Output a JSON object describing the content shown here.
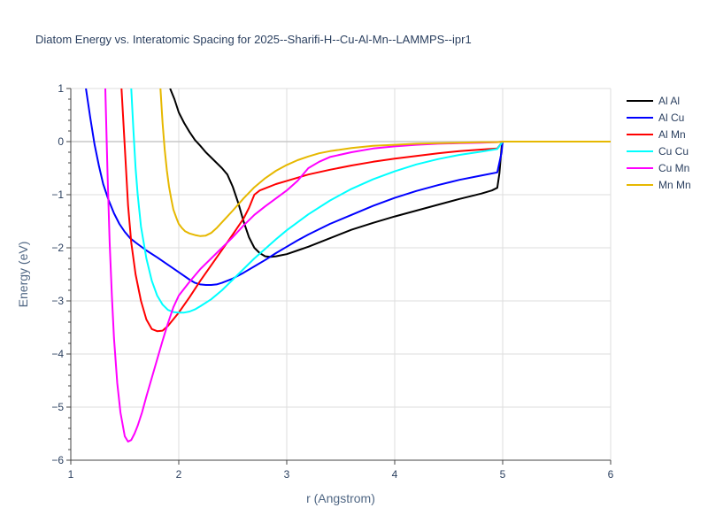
{
  "chart_data": {
    "type": "line",
    "title": "Diatom Energy vs. Interatomic Spacing for 2025--Sharifi-H--Cu-Al-Mn--LAMMPS--ipr1",
    "xlabel": "r (Angstrom)",
    "ylabel": "Energy (eV)",
    "xlim": [
      1,
      6
    ],
    "ylim": [
      -6,
      1
    ],
    "xticks": [
      1,
      2,
      3,
      4,
      5,
      6
    ],
    "yticks": [
      1,
      0,
      -1,
      -2,
      -3,
      -4,
      -5,
      -6
    ],
    "ytick_labels": [
      "1",
      "0",
      "−1",
      "−2",
      "−3",
      "−4",
      "−5",
      "−6"
    ],
    "grid": true,
    "legend_position": "top-right",
    "series": [
      {
        "name": "Al Al",
        "color": "#000000",
        "x": [
          1.92,
          1.96,
          2.0,
          2.05,
          2.1,
          2.15,
          2.2,
          2.25,
          2.3,
          2.35,
          2.4,
          2.45,
          2.5,
          2.55,
          2.6,
          2.65,
          2.7,
          2.75,
          2.8,
          2.85,
          2.9,
          2.95,
          3.0,
          3.1,
          3.2,
          3.4,
          3.6,
          3.8,
          4.0,
          4.2,
          4.4,
          4.6,
          4.8,
          4.9,
          4.95,
          4.97,
          4.99,
          5.0,
          5.5,
          6.0
        ],
        "y": [
          1.0,
          0.8,
          0.55,
          0.35,
          0.18,
          0.03,
          -0.08,
          -0.2,
          -0.3,
          -0.4,
          -0.5,
          -0.62,
          -0.85,
          -1.15,
          -1.5,
          -1.8,
          -2.0,
          -2.1,
          -2.16,
          -2.17,
          -2.16,
          -2.14,
          -2.12,
          -2.05,
          -1.98,
          -1.82,
          -1.66,
          -1.53,
          -1.41,
          -1.3,
          -1.19,
          -1.08,
          -0.98,
          -0.92,
          -0.87,
          -0.6,
          -0.1,
          0.0,
          0.0,
          0.0
        ]
      },
      {
        "name": "Al Cu",
        "color": "#0000ff",
        "x": [
          1.14,
          1.18,
          1.22,
          1.26,
          1.3,
          1.35,
          1.4,
          1.45,
          1.5,
          1.55,
          1.6,
          1.7,
          1.8,
          1.9,
          2.0,
          2.1,
          2.15,
          2.2,
          2.25,
          2.3,
          2.35,
          2.4,
          2.5,
          2.6,
          2.7,
          2.8,
          2.9,
          3.0,
          3.1,
          3.2,
          3.3,
          3.4,
          3.6,
          3.8,
          4.0,
          4.2,
          4.4,
          4.6,
          4.8,
          4.95,
          4.99,
          5.0,
          5.5,
          6.0
        ],
        "y": [
          1.0,
          0.45,
          -0.05,
          -0.45,
          -0.8,
          -1.1,
          -1.35,
          -1.55,
          -1.7,
          -1.82,
          -1.9,
          -2.05,
          -2.18,
          -2.32,
          -2.46,
          -2.6,
          -2.66,
          -2.69,
          -2.7,
          -2.7,
          -2.69,
          -2.66,
          -2.58,
          -2.47,
          -2.35,
          -2.23,
          -2.1,
          -1.98,
          -1.86,
          -1.75,
          -1.65,
          -1.55,
          -1.38,
          -1.21,
          -1.06,
          -0.93,
          -0.82,
          -0.72,
          -0.64,
          -0.58,
          -0.2,
          0.0,
          0.0,
          0.0
        ]
      },
      {
        "name": "Al Mn",
        "color": "#ff0000",
        "x": [
          1.47,
          1.5,
          1.53,
          1.56,
          1.6,
          1.65,
          1.7,
          1.75,
          1.8,
          1.85,
          1.9,
          2.0,
          2.1,
          2.2,
          2.3,
          2.4,
          2.5,
          2.6,
          2.65,
          2.7,
          2.75,
          2.8,
          2.9,
          3.0,
          3.2,
          3.4,
          3.6,
          3.8,
          4.0,
          4.2,
          4.4,
          4.6,
          4.8,
          4.95,
          5.0,
          5.5,
          6.0
        ],
        "y": [
          1.0,
          -0.1,
          -1.2,
          -1.9,
          -2.5,
          -3.0,
          -3.35,
          -3.53,
          -3.57,
          -3.56,
          -3.47,
          -3.22,
          -2.93,
          -2.62,
          -2.33,
          -2.04,
          -1.75,
          -1.45,
          -1.25,
          -1.0,
          -0.92,
          -0.88,
          -0.8,
          -0.74,
          -0.62,
          -0.53,
          -0.45,
          -0.38,
          -0.32,
          -0.27,
          -0.22,
          -0.18,
          -0.15,
          -0.13,
          0.0,
          0.0,
          0.0
        ]
      },
      {
        "name": "Cu Cu",
        "color": "#00ffff",
        "x": [
          1.56,
          1.58,
          1.6,
          1.62,
          1.65,
          1.7,
          1.75,
          1.8,
          1.85,
          1.9,
          1.95,
          2.0,
          2.05,
          2.1,
          2.15,
          2.2,
          2.3,
          2.4,
          2.5,
          2.6,
          2.7,
          2.8,
          2.9,
          3.0,
          3.2,
          3.4,
          3.6,
          3.8,
          4.0,
          4.2,
          4.4,
          4.6,
          4.8,
          4.95,
          5.0,
          5.5,
          6.0
        ],
        "y": [
          1.0,
          0.2,
          -0.5,
          -1.0,
          -1.6,
          -2.2,
          -2.62,
          -2.9,
          -3.07,
          -3.17,
          -3.21,
          -3.22,
          -3.22,
          -3.2,
          -3.16,
          -3.1,
          -2.97,
          -2.8,
          -2.6,
          -2.4,
          -2.2,
          -2.02,
          -1.84,
          -1.67,
          -1.37,
          -1.11,
          -0.89,
          -0.71,
          -0.56,
          -0.43,
          -0.33,
          -0.25,
          -0.19,
          -0.14,
          0.0,
          0.0,
          0.0
        ]
      },
      {
        "name": "Cu Mn",
        "color": "#ff00ff",
        "x": [
          1.32,
          1.34,
          1.36,
          1.38,
          1.4,
          1.43,
          1.46,
          1.5,
          1.53,
          1.56,
          1.59,
          1.62,
          1.66,
          1.7,
          1.75,
          1.8,
          1.85,
          1.9,
          1.95,
          2.0,
          2.1,
          2.2,
          2.3,
          2.4,
          2.5,
          2.6,
          2.7,
          2.8,
          2.9,
          3.0,
          3.1,
          3.2,
          3.3,
          3.4,
          3.6,
          3.8,
          4.0,
          4.2,
          4.4,
          4.6,
          4.8,
          4.95,
          5.0,
          5.5,
          6.0
        ],
        "y": [
          1.0,
          -0.6,
          -1.9,
          -2.9,
          -3.7,
          -4.55,
          -5.1,
          -5.55,
          -5.65,
          -5.62,
          -5.5,
          -5.35,
          -5.1,
          -4.8,
          -4.45,
          -4.1,
          -3.75,
          -3.42,
          -3.12,
          -2.9,
          -2.64,
          -2.4,
          -2.2,
          -2.0,
          -1.8,
          -1.58,
          -1.38,
          -1.22,
          -1.07,
          -0.92,
          -0.74,
          -0.5,
          -0.38,
          -0.29,
          -0.2,
          -0.13,
          -0.09,
          -0.06,
          -0.04,
          -0.03,
          -0.02,
          -0.01,
          0.0,
          0.0,
          0.0
        ]
      },
      {
        "name": "Mn Mn",
        "color": "#e6b800",
        "x": [
          1.83,
          1.85,
          1.87,
          1.89,
          1.91,
          1.93,
          1.95,
          1.98,
          2.0,
          2.03,
          2.06,
          2.1,
          2.15,
          2.2,
          2.25,
          2.3,
          2.35,
          2.4,
          2.5,
          2.6,
          2.7,
          2.8,
          2.9,
          3.0,
          3.1,
          3.2,
          3.3,
          3.4,
          3.6,
          3.8,
          4.0,
          4.2,
          4.4,
          4.6,
          4.8,
          4.95,
          5.0,
          5.5,
          6.0
        ],
        "y": [
          1.0,
          0.35,
          -0.15,
          -0.55,
          -0.85,
          -1.08,
          -1.28,
          -1.45,
          -1.55,
          -1.63,
          -1.69,
          -1.73,
          -1.76,
          -1.78,
          -1.77,
          -1.72,
          -1.63,
          -1.52,
          -1.3,
          -1.07,
          -0.86,
          -0.69,
          -0.55,
          -0.44,
          -0.35,
          -0.28,
          -0.22,
          -0.18,
          -0.12,
          -0.08,
          -0.06,
          -0.04,
          -0.03,
          -0.02,
          -0.01,
          -0.01,
          0.0,
          0.0,
          0.0
        ]
      }
    ]
  }
}
